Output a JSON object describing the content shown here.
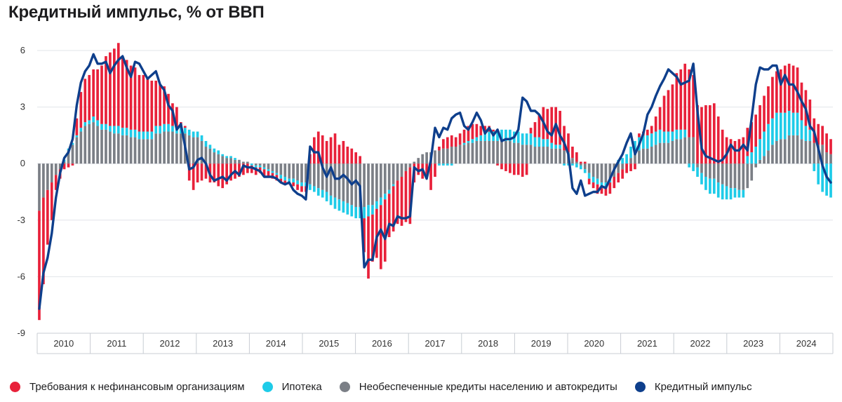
{
  "chart_data": {
    "type": "bar",
    "title": "Кредитный импульс, % от ВВП",
    "ylim": [
      -9,
      6
    ],
    "yticks": [
      6,
      3,
      0,
      -3,
      -6,
      -9
    ],
    "ytick_labels": [
      "6",
      "3",
      "0",
      "-3",
      "-6",
      "-9"
    ],
    "years": [
      "2010",
      "2011",
      "2012",
      "2013",
      "2014",
      "2015",
      "2016",
      "2017",
      "2018",
      "2019",
      "2020",
      "2021",
      "2022",
      "2023",
      "2024"
    ],
    "x_start": "2010-01",
    "x_end": "2024-12",
    "series": [
      {
        "name": "Требования к нефинансовым организациям",
        "type": "bar",
        "color": "#e8213a",
        "values": [
          -5.8,
          -4.6,
          -2.9,
          -2.0,
          -0.8,
          -0.5,
          -0.3,
          -0.2,
          -0.1,
          0.9,
          1.9,
          2.3,
          2.4,
          2.5,
          2.7,
          3.1,
          3.6,
          3.9,
          4.1,
          4.4,
          3.7,
          3.6,
          3.4,
          3.3,
          3.0,
          3.0,
          2.8,
          2.7,
          2.4,
          2.2,
          2.0,
          1.6,
          1.2,
          1.1,
          0.3,
          0.1,
          -0.9,
          -1.4,
          -1.0,
          -0.9,
          -0.8,
          -1.0,
          -1.0,
          -1.2,
          -1.3,
          -1.1,
          -0.9,
          -0.8,
          -0.7,
          -0.6,
          -0.5,
          -0.4,
          -0.4,
          -0.3,
          -0.4,
          -0.3,
          -0.3,
          -0.3,
          -0.2,
          -0.2,
          -0.1,
          -0.2,
          -0.3,
          -0.3,
          -0.3,
          0.5,
          1.4,
          1.7,
          1.5,
          1.2,
          1.4,
          1.6,
          1.0,
          1.2,
          0.9,
          0.8,
          0.6,
          0.4,
          -1.8,
          -3.3,
          -2.5,
          -2.6,
          -3.4,
          -3.3,
          -2.3,
          -2.4,
          -2.3,
          -2.6,
          -2.7,
          -3.0,
          -1.0,
          -0.6,
          -0.8,
          -0.6,
          -1.4,
          -0.7,
          0.2,
          0.5,
          0.6,
          0.6,
          0.5,
          0.6,
          0.7,
          0.8,
          0.8,
          0.7,
          0.5,
          0.4,
          0.3,
          0.1,
          -0.1,
          -0.3,
          -0.4,
          -0.5,
          -0.6,
          -0.6,
          -0.7,
          -0.6,
          0.3,
          0.8,
          1.2,
          1.7,
          1.6,
          1.9,
          2.0,
          1.8,
          1.3,
          1.0,
          0.6,
          0.5,
          0.1,
          0.1,
          -0.3,
          -0.3,
          -0.5,
          -0.3,
          -0.5,
          -0.6,
          -0.6,
          -0.5,
          -0.5,
          -0.5,
          -0.4,
          -0.3,
          0.2,
          0.2,
          0.3,
          0.4,
          0.8,
          1.2,
          1.9,
          2.2,
          2.5,
          3.0,
          3.2,
          3.5,
          3.6,
          3.3,
          3.1,
          3.0,
          3.1,
          3.1,
          3.2,
          2.5,
          1.8,
          1.4,
          1.3,
          1.2,
          1.3,
          1.4,
          1.5,
          1.6,
          1.7,
          1.8,
          1.9,
          2.0,
          2.2,
          2.2,
          2.3,
          2.5,
          2.5,
          2.5,
          2.4,
          2.0,
          1.9,
          1.6,
          1.3,
          1.1,
          1.0,
          1.0,
          0.8,
          0.8,
          1.0,
          1.1,
          0.5,
          0.3
        ]
      },
      {
        "name": "Ипотека",
        "type": "bar",
        "color": "#1ecbe8",
        "values": [
          0.0,
          0.0,
          0.0,
          0.0,
          0.0,
          0.0,
          0.1,
          0.1,
          0.1,
          0.1,
          0.2,
          0.2,
          0.2,
          0.3,
          0.3,
          0.3,
          0.3,
          0.3,
          0.4,
          0.4,
          0.4,
          0.4,
          0.4,
          0.4,
          0.4,
          0.4,
          0.4,
          0.4,
          0.4,
          0.4,
          0.4,
          0.4,
          0.3,
          0.3,
          0.3,
          0.3,
          0.3,
          0.3,
          0.3,
          0.3,
          0.3,
          0.2,
          0.2,
          0.2,
          0.1,
          0.1,
          0.1,
          0.1,
          0.0,
          0.0,
          0.0,
          -0.1,
          -0.1,
          -0.1,
          -0.1,
          -0.1,
          -0.1,
          -0.1,
          -0.2,
          -0.2,
          -0.2,
          -0.2,
          -0.2,
          -0.2,
          -0.2,
          -0.3,
          -0.3,
          -0.4,
          -0.4,
          -0.5,
          -0.5,
          -0.6,
          -0.6,
          -0.6,
          -0.6,
          -0.6,
          -0.6,
          -0.6,
          -0.6,
          -0.6,
          -0.5,
          -0.4,
          -0.4,
          -0.3,
          -0.2,
          -0.1,
          0.0,
          0.0,
          0.0,
          0.0,
          0.0,
          0.0,
          0.0,
          0.0,
          0.0,
          0.0,
          -0.1,
          -0.1,
          -0.1,
          -0.1,
          0.0,
          0.0,
          0.1,
          0.1,
          0.2,
          0.2,
          0.3,
          0.4,
          0.5,
          0.5,
          0.5,
          0.6,
          0.6,
          0.6,
          0.6,
          0.6,
          0.6,
          0.6,
          0.6,
          0.5,
          0.5,
          0.4,
          0.4,
          0.3,
          0.2,
          0.2,
          -0.1,
          -0.1,
          -0.1,
          -0.2,
          -0.2,
          -0.2,
          -0.3,
          -0.3,
          -0.3,
          -0.3,
          -0.2,
          -0.1,
          0.0,
          0.2,
          0.3,
          0.5,
          0.6,
          0.7,
          0.7,
          0.7,
          0.7,
          0.7,
          0.7,
          0.7,
          0.6,
          0.6,
          0.5,
          0.5,
          0.5,
          0.4,
          -0.2,
          -0.4,
          -0.5,
          -0.6,
          -0.7,
          -0.8,
          -0.8,
          -0.8,
          -0.8,
          -0.7,
          -0.6,
          -0.5,
          -0.4,
          -0.4,
          0.4,
          0.6,
          0.9,
          1.1,
          1.3,
          1.4,
          1.4,
          1.5,
          1.4,
          1.4,
          1.3,
          1.2,
          1.2,
          1.0,
          0.8,
          0.6,
          -0.4,
          -1.1,
          -1.5,
          -1.7,
          -1.8
        ]
      },
      {
        "name": "Необеспеченные кредиты населению и автокредиты",
        "type": "bar",
        "color": "#7b7f86",
        "values": [
          -2.5,
          -1.8,
          -1.4,
          -1.0,
          -0.6,
          -0.3,
          0.1,
          0.7,
          1.0,
          1.4,
          1.7,
          2.0,
          2.1,
          2.2,
          2.0,
          1.8,
          1.8,
          1.7,
          1.6,
          1.6,
          1.5,
          1.5,
          1.4,
          1.4,
          1.3,
          1.3,
          1.3,
          1.3,
          1.6,
          1.6,
          1.7,
          1.7,
          1.7,
          1.6,
          1.6,
          1.6,
          1.5,
          1.4,
          1.4,
          1.2,
          0.9,
          0.8,
          0.6,
          0.5,
          0.4,
          0.3,
          0.3,
          0.2,
          0.2,
          0.1,
          0.1,
          0.0,
          -0.1,
          -0.1,
          -0.2,
          -0.3,
          -0.4,
          -0.5,
          -0.6,
          -0.7,
          -0.8,
          -0.8,
          -0.9,
          -1.0,
          -1.0,
          -1.1,
          -1.2,
          -1.3,
          -1.4,
          -1.5,
          -1.7,
          -1.8,
          -1.9,
          -2.0,
          -2.1,
          -2.2,
          -2.3,
          -2.3,
          -2.3,
          -2.2,
          -2.2,
          -2.0,
          -1.8,
          -1.6,
          -1.4,
          -1.1,
          -0.9,
          -0.7,
          -0.4,
          -0.2,
          0.1,
          0.3,
          0.5,
          0.6,
          0.6,
          0.7,
          0.7,
          0.8,
          0.8,
          0.9,
          0.9,
          1.0,
          1.0,
          1.1,
          1.1,
          1.2,
          1.2,
          1.2,
          1.2,
          1.2,
          1.2,
          1.2,
          1.2,
          1.2,
          1.1,
          1.1,
          1.0,
          1.0,
          1.0,
          0.9,
          0.9,
          0.9,
          0.9,
          0.8,
          0.8,
          0.8,
          0.7,
          0.6,
          0.3,
          0.1,
          -0.1,
          -0.3,
          -0.5,
          -0.7,
          -0.8,
          -1.0,
          -1.0,
          -0.9,
          -0.7,
          -0.5,
          -0.3,
          0.0,
          0.3,
          0.5,
          0.7,
          0.8,
          0.8,
          0.9,
          1.0,
          1.1,
          1.1,
          1.1,
          1.2,
          1.3,
          1.3,
          1.4,
          1.4,
          1.4,
          -0.2,
          -0.5,
          -0.7,
          -0.8,
          -0.8,
          -1.0,
          -1.1,
          -1.2,
          -1.3,
          -1.3,
          -1.4,
          -1.4,
          -1.3,
          -0.9,
          -0.2,
          0.2,
          0.4,
          0.7,
          1.0,
          1.2,
          1.3,
          1.3,
          1.5,
          1.5,
          1.5,
          1.3,
          1.2,
          1.2,
          1.1,
          1.0,
          1.0,
          0.6,
          0.5,
          0.4,
          0.2,
          0.2
        ]
      },
      {
        "name": "Кредитный импульс",
        "type": "line",
        "color": "#0e3f8c",
        "values": [
          -7.7,
          -5.8,
          -5.0,
          -3.7,
          -1.8,
          -0.5,
          0.3,
          0.6,
          1.3,
          3.1,
          4.3,
          4.9,
          5.2,
          5.8,
          5.3,
          5.3,
          5.4,
          4.8,
          5.2,
          5.5,
          5.7,
          5.1,
          4.6,
          5.4,
          5.3,
          4.9,
          4.5,
          4.7,
          4.9,
          4.2,
          3.9,
          3.1,
          2.8,
          1.8,
          2.1,
          0.9,
          -0.3,
          -0.2,
          0.2,
          0.3,
          0.0,
          -0.6,
          -0.9,
          -0.8,
          -0.7,
          -0.9,
          -0.6,
          -0.4,
          -0.6,
          -0.1,
          -0.2,
          -0.2,
          -0.3,
          -0.4,
          -0.7,
          -0.7,
          -0.7,
          -0.8,
          -1.0,
          -1.1,
          -1.0,
          -1.4,
          -1.6,
          -1.7,
          -1.9,
          0.9,
          0.6,
          0.6,
          -0.2,
          -0.7,
          -0.2,
          -0.8,
          -0.8,
          -0.6,
          -0.8,
          -1.1,
          -0.9,
          -1.2,
          -5.5,
          -5.1,
          -5.1,
          -3.9,
          -3.5,
          -4.0,
          -3.2,
          -3.3,
          -2.8,
          -2.9,
          -2.9,
          -2.8,
          -0.2,
          -0.4,
          -0.3,
          -0.8,
          0.2,
          1.9,
          1.4,
          1.9,
          1.8,
          2.4,
          2.6,
          2.7,
          2.0,
          1.8,
          2.2,
          2.7,
          2.3,
          1.6,
          1.9,
          1.5,
          1.8,
          1.2,
          1.3,
          1.3,
          1.4,
          1.8,
          3.5,
          3.3,
          2.8,
          2.8,
          2.6,
          2.2,
          1.7,
          1.5,
          2.1,
          1.5,
          1.1,
          0.5,
          -1.3,
          -1.6,
          -0.9,
          -1.7,
          -1.6,
          -1.5,
          -1.5,
          -1.2,
          -1.3,
          -0.8,
          -0.3,
          0.1,
          0.5,
          1.1,
          1.6,
          0.5,
          1.0,
          1.6,
          2.6,
          3.0,
          3.6,
          4.1,
          4.5,
          5.0,
          4.8,
          4.6,
          4.2,
          4.3,
          4.4,
          5.3,
          2.8,
          0.8,
          0.4,
          0.3,
          0.2,
          0.1,
          0.2,
          0.5,
          1.0,
          0.7,
          0.7,
          1.0,
          0.7,
          2.4,
          4.2,
          5.1,
          5.0,
          5.0,
          5.2,
          5.2,
          4.2,
          4.7,
          4.2,
          4.2,
          3.8,
          3.3,
          2.9,
          2.0,
          1.7,
          0.8,
          -0.1,
          -0.7,
          -1.0
        ]
      }
    ]
  }
}
